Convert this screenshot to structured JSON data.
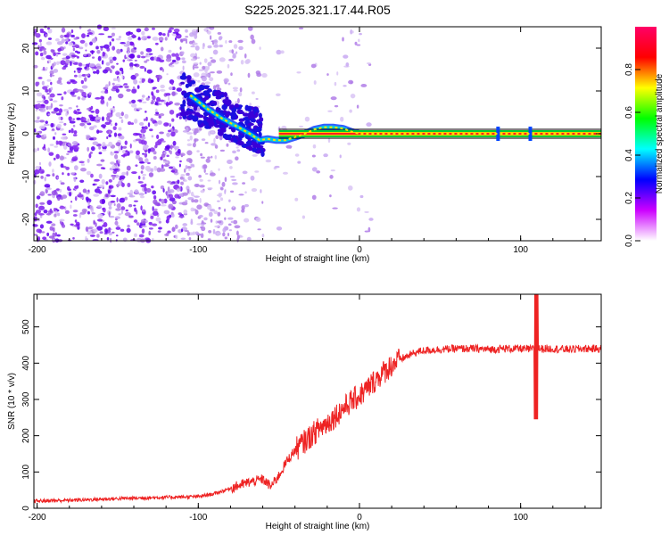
{
  "figure_title": "S225.2025.321.17.44.R05",
  "colors": {
    "snr_line": "#ee2222",
    "carrier_core": "#ff2020",
    "carrier_edge": "#00cc33",
    "axis": "#000000"
  },
  "chart_data": [
    {
      "type": "heatmap",
      "name": "spectrogram",
      "xlabel": "Height of straight line (km)",
      "ylabel": "Frequency (Hz)",
      "xlim": [
        -202,
        150
      ],
      "ylim": [
        -25,
        25
      ],
      "xticks": [
        -200,
        -100,
        0,
        100
      ],
      "yticks": [
        20,
        10,
        0,
        -10,
        -20
      ],
      "colorbar": {
        "label": "Normalized spectral amplitude",
        "range": [
          0.0,
          1.0
        ],
        "ticks": [
          0.0,
          0.2,
          0.4,
          0.6,
          0.8
        ],
        "tick_labels": [
          "0.0",
          "0.2",
          "0.4",
          "0.6",
          "0.8"
        ],
        "colormap": [
          "#ffffff",
          "#cc00ff",
          "#0000ff",
          "#00ffff",
          "#00ff00",
          "#ffff00",
          "#ff0000",
          "#ff0066"
        ]
      },
      "carrier_track": {
        "x": [
          -105,
          -95,
          -85,
          -75,
          -68,
          -62,
          -57,
          -52,
          -46,
          -40,
          -34,
          -28,
          -22,
          -16,
          -10,
          -5,
          0,
          10,
          150
        ],
        "y": [
          9,
          6,
          3.5,
          1.5,
          0,
          -1.5,
          -1.2,
          -1.5,
          -1.5,
          -0.8,
          0,
          1,
          1.5,
          1.5,
          1.2,
          0.5,
          0,
          0,
          0
        ]
      },
      "carrier_frequency_hz": 0
    },
    {
      "type": "line",
      "name": "snr",
      "xlabel": "Height of straight line (km)",
      "ylabel": "SNR (10 * v/v)",
      "xlim": [
        -202,
        150
      ],
      "ylim": [
        0,
        590
      ],
      "xticks": [
        -200,
        -100,
        0,
        100
      ],
      "yticks": [
        0,
        100,
        200,
        300,
        400,
        500
      ],
      "series": [
        {
          "name": "SNR",
          "x": [
            -202,
            -180,
            -160,
            -140,
            -120,
            -100,
            -90,
            -80,
            -70,
            -60,
            -55,
            -50,
            -45,
            -40,
            -35,
            -30,
            -25,
            -20,
            -15,
            -10,
            -5,
            0,
            5,
            10,
            15,
            20,
            25,
            30,
            35,
            40,
            50,
            60,
            70,
            80,
            90,
            100,
            105,
            110,
            115,
            120,
            130,
            140,
            150
          ],
          "y": [
            20,
            22,
            25,
            28,
            30,
            32,
            40,
            55,
            70,
            80,
            60,
            90,
            130,
            160,
            180,
            200,
            220,
            235,
            255,
            275,
            295,
            310,
            330,
            355,
            375,
            395,
            410,
            420,
            430,
            435,
            438,
            440,
            440,
            438,
            440,
            440,
            438,
            440,
            440,
            440,
            438,
            440,
            440
          ]
        }
      ]
    }
  ]
}
